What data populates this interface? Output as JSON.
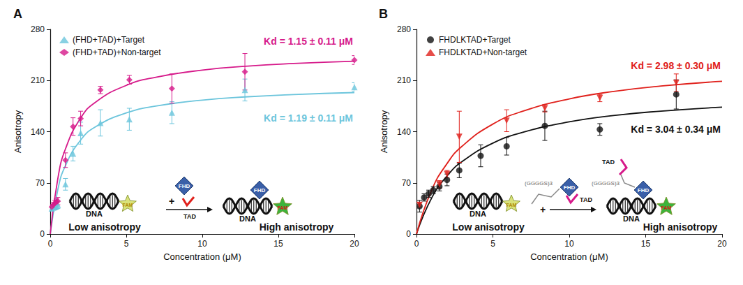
{
  "chart_data": [
    {
      "type": "scatter",
      "title": "A",
      "xlabel": "Concentration (μM)",
      "ylabel": "Anisotropy",
      "xlim": [
        0,
        20
      ],
      "ylim": [
        0,
        280
      ],
      "xticks": [
        0,
        5,
        10,
        15,
        20
      ],
      "yticks": [
        0,
        70,
        140,
        210,
        280
      ],
      "grid": false,
      "legend": "upper left",
      "series": [
        {
          "name": "(FHD+TAD)+Target",
          "color": "#6cc5dc",
          "marker": "triangle",
          "x": [
            0.1,
            0.2,
            0.3,
            0.4,
            0.5,
            1,
            1.5,
            2,
            3.3,
            5.2,
            8,
            12.8,
            20
          ],
          "values": [
            35,
            36,
            37,
            38,
            40,
            68,
            110,
            138,
            152,
            157,
            166,
            197,
            201
          ],
          "errors": [
            3,
            3,
            4,
            4,
            5,
            8,
            10,
            15,
            18,
            15,
            15,
            15,
            6
          ]
        },
        {
          "name": "(FHD+TAD)+Non-target",
          "color": "#d6198a",
          "marker": "diamond",
          "x": [
            0.1,
            0.2,
            0.3,
            0.4,
            0.5,
            1,
            1.5,
            2,
            3.3,
            5.2,
            8,
            12.8,
            20
          ],
          "values": [
            37,
            40,
            42,
            44,
            45,
            101,
            147,
            158,
            197,
            211,
            199,
            222,
            238
          ],
          "errors": [
            3,
            3,
            4,
            4,
            5,
            10,
            12,
            10,
            5,
            6,
            20,
            25,
            6
          ]
        },
        {
          "type": "line",
          "color": "#6cc5dc",
          "x": [
            0,
            0.5,
            1,
            2,
            3,
            5,
            7,
            10,
            13,
            16,
            20
          ],
          "values": [
            0,
            60.7,
            93.6,
            128.6,
            147.0,
            165.6,
            175.2,
            183.2,
            187.8,
            190.8,
            193.5
          ]
        },
        {
          "type": "line",
          "color": "#d6198a",
          "x": [
            0,
            0.5,
            1,
            2,
            3,
            5,
            7,
            10,
            13,
            16,
            20
          ],
          "values": [
            0,
            75.8,
            116.3,
            158.7,
            180.7,
            203.3,
            214.7,
            224.2,
            229.7,
            233.2,
            236.4
          ]
        }
      ],
      "annotations": [
        {
          "text": "Kd = 1.15 ± 0.11 μM",
          "color": "#d6198a"
        },
        {
          "text": "Kd = 1.19 ± 0.11 μM",
          "color": "#6cc5dc"
        }
      ],
      "inset": {
        "dna": "DNA",
        "dye": "FAM",
        "protein": "FHD",
        "peptide": "TAD",
        "plus": "+",
        "before": "Low anisotropy",
        "after": "High anisotropy"
      }
    },
    {
      "type": "scatter",
      "title": "B",
      "xlabel": "Concentration (μM)",
      "ylabel": "Anisotropy",
      "xlim": [
        0,
        20
      ],
      "ylim": [
        0,
        280
      ],
      "xticks": [
        0,
        5,
        10,
        15,
        20
      ],
      "yticks": [
        0,
        70,
        140,
        210,
        280
      ],
      "grid": false,
      "legend": "upper left",
      "series": [
        {
          "name": "FHDLKTAD+Target",
          "color": "#111111",
          "marker": "circle",
          "x": [
            0.2,
            0.5,
            0.8,
            1.1,
            1.5,
            2,
            2.8,
            4.2,
            5.9,
            8.4,
            12,
            17
          ],
          "values": [
            38,
            50,
            55,
            60,
            65,
            74,
            87,
            107,
            120,
            148,
            143,
            191
          ],
          "errors": [
            8,
            5,
            5,
            5,
            6,
            8,
            10,
            15,
            12,
            20,
            8,
            20
          ]
        },
        {
          "name": "FHDLKTAD+Non-target",
          "color": "#e0201b",
          "marker": "triangle-down",
          "x": [
            0.2,
            1.5,
            2,
            2.8,
            5.9,
            8.4,
            12,
            17
          ],
          "values": [
            40,
            68,
            82,
            133,
            155,
            172,
            186,
            207
          ],
          "errors": [
            3,
            5,
            5,
            35,
            15,
            5,
            5,
            12
          ]
        },
        {
          "type": "line",
          "color": "#111111",
          "x": [
            0,
            1,
            2,
            3,
            5,
            7,
            10,
            13,
            16,
            20
          ],
          "values": [
            0,
            49.5,
            79.4,
            99.3,
            124.4,
            139.4,
            153.4,
            162.3,
            168.1,
            173.6
          ]
        },
        {
          "type": "line",
          "color": "#e0201b",
          "x": [
            0,
            1,
            2,
            3,
            5,
            7,
            10,
            13,
            16,
            20
          ],
          "values": [
            0,
            60.3,
            96.4,
            120.4,
            150.4,
            168.3,
            184.9,
            195.3,
            202.4,
            208.9
          ]
        }
      ],
      "annotations": [
        {
          "text": "Kd = 2.98 ± 0.30 μM",
          "color": "#e0201b"
        },
        {
          "text": "Kd = 3.04 ± 0.34 μM",
          "color": "#111111"
        }
      ],
      "inset": {
        "dna": "DNA",
        "dye": "FAM",
        "protein": "FHD",
        "peptide": "TAD",
        "plus": "+",
        "linker": "(GGGGS)3",
        "before": "Low anisotropy",
        "after": "High anisotropy"
      }
    }
  ]
}
